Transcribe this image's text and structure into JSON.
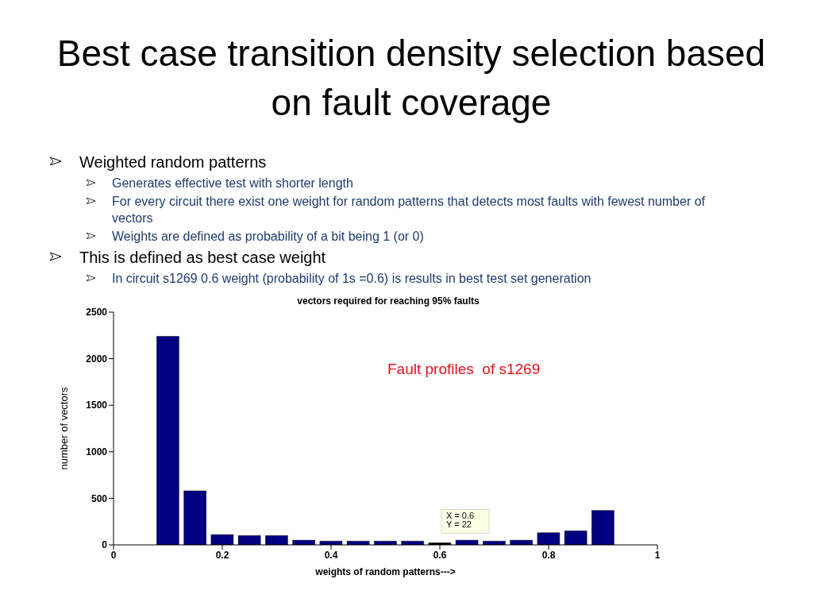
{
  "chart_data": {
    "type": "bar",
    "title": "Best case transition density selection based on fault coverage",
    "subtitle": "vectors required for reaching 95% faults",
    "xlabel": "weights of random patterns--->",
    "ylabel": "number of vectors",
    "x": [
      0.1,
      0.15,
      0.2,
      0.25,
      0.3,
      0.35,
      0.4,
      0.45,
      0.5,
      0.55,
      0.6,
      0.65,
      0.7,
      0.75,
      0.8,
      0.85,
      0.9
    ],
    "values": [
      2240,
      580,
      110,
      100,
      100,
      50,
      40,
      40,
      40,
      40,
      22,
      50,
      40,
      50,
      130,
      150,
      370
    ],
    "colors": [
      "#000080",
      "#000080",
      "#000080",
      "#000080",
      "#000080",
      "#000080",
      "#000080",
      "#000080",
      "#000080",
      "#000080",
      "#000000",
      "#000080",
      "#000080",
      "#000080",
      "#000080",
      "#000080",
      "#000080"
    ],
    "xlim": [
      0,
      1
    ],
    "xticks": [
      0,
      0.2,
      0.4,
      0.6,
      0.8,
      1
    ],
    "ylim": [
      0,
      2500
    ],
    "yticks": [
      0,
      500,
      1000,
      1500,
      2000,
      2500
    ],
    "annotations": [
      "Weighted random patterns",
      "Generates effective test with shorter length",
      "For every circuit there exist one weight for random patterns that detects most faults with fewest number of vectors",
      "Weights are defined as probability of a bit being 1 (or 0)",
      "This is defined as best case weight",
      "In circuit s1269  0.6 weight (probability of 1s =0.6) is results in best test set generation",
      "Fault profiles  of s1269",
      {
        "text": "X = 0.6\nY = 22",
        "x": 0.6,
        "y": 22
      }
    ]
  }
}
